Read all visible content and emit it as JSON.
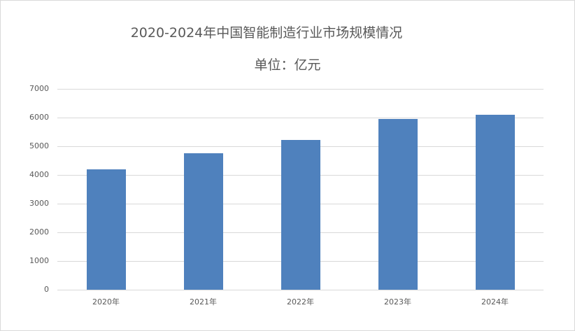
{
  "chart_data": {
    "type": "bar",
    "title": "2020-2024年中国智能制造行业市场规模情况",
    "subtitle": "单位：亿元",
    "categories": [
      "2020年",
      "2021年",
      "2022年",
      "2023年",
      "2024年"
    ],
    "values": [
      4200,
      4750,
      5230,
      5960,
      6110
    ],
    "xlabel": "",
    "ylabel": "",
    "ylim": [
      0,
      7000
    ],
    "yticks": [
      "0",
      "1000",
      "2000",
      "3000",
      "4000",
      "5000",
      "6000",
      "7000"
    ],
    "grid": true,
    "legend": "none",
    "bar_color": "#4f81bd"
  }
}
